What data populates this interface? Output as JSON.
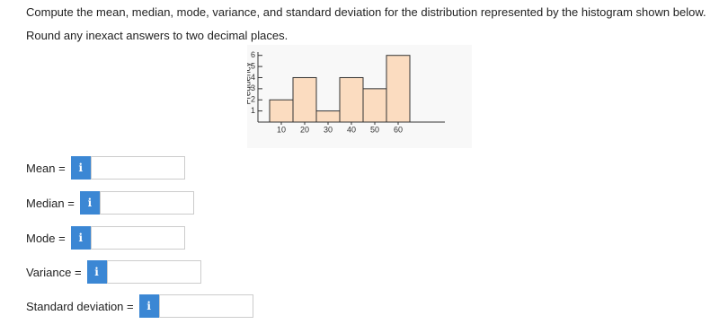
{
  "question": {
    "line1": "Compute the mean, median, mode, variance, and standard deviation for the distribution represented by the histogram shown below.",
    "line2": "Round any inexact answers to two decimal places."
  },
  "chart_data": {
    "type": "histogram",
    "bins": [
      5,
      15,
      25,
      35,
      45,
      55,
      65
    ],
    "values": [
      2,
      4,
      1,
      4,
      3,
      6
    ],
    "color": "#fbdcc0",
    "y_label": "Frequency",
    "xlim": [
      0,
      80
    ],
    "xticks": [
      10,
      20,
      30,
      40,
      50,
      60
    ],
    "ylim": [
      0,
      6.3
    ],
    "yticks": [
      1,
      2,
      3,
      4,
      5,
      6
    ]
  },
  "fields": [
    {
      "label": "Mean =",
      "icon": "i"
    },
    {
      "label": "Median =",
      "icon": "i"
    },
    {
      "label": "Mode =",
      "icon": "i"
    },
    {
      "label": "Variance =",
      "icon": "i"
    },
    {
      "label": "Standard deviation =",
      "icon": "i"
    }
  ]
}
